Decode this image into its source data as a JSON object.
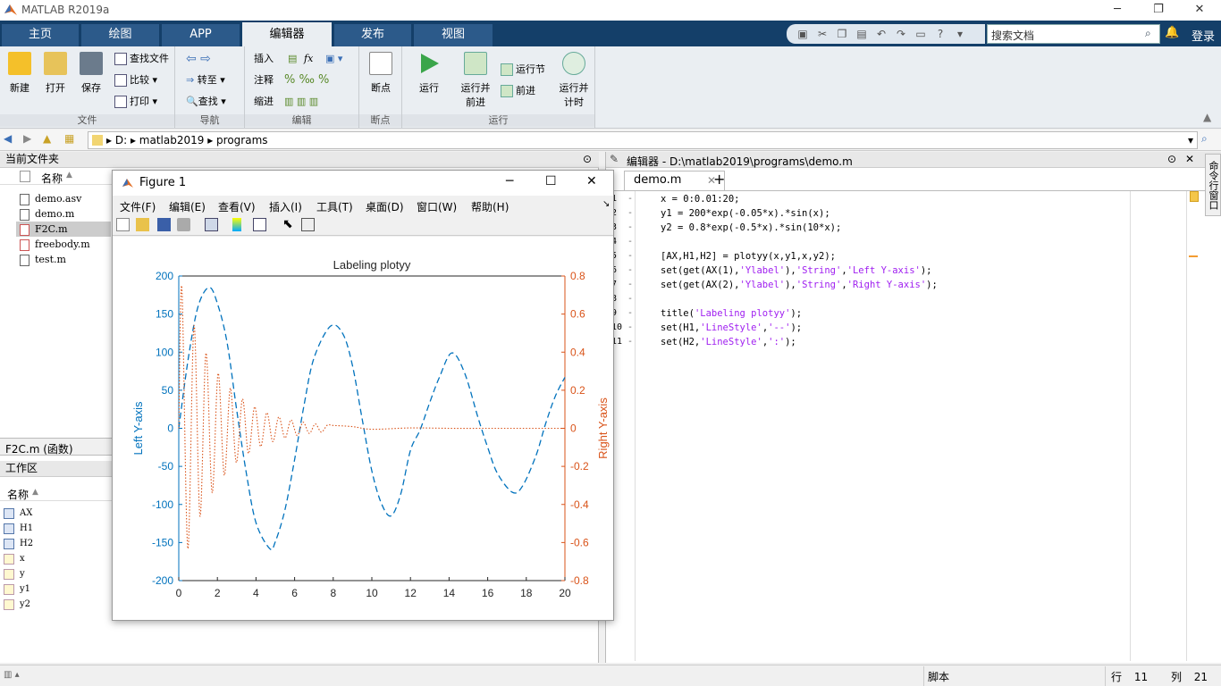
{
  "app": {
    "title": "MATLAB R2019a"
  },
  "ribbon_tabs": [
    {
      "label": "主页"
    },
    {
      "label": "绘图"
    },
    {
      "label": "APP"
    },
    {
      "label": "编辑器"
    },
    {
      "label": "发布"
    },
    {
      "label": "视图"
    }
  ],
  "search": {
    "placeholder": "搜索文档"
  },
  "login": "登录",
  "ribbon": {
    "file_group": {
      "label": "文件",
      "new": "新建",
      "open": "打开",
      "save": "保存",
      "find_files": "查找文件",
      "compare": "比较",
      "print": "打印"
    },
    "nav_group": {
      "label": "导航",
      "goto": "转至",
      "find": "查找"
    },
    "edit_group": {
      "label": "编辑",
      "insert": "插入",
      "comment": "注释",
      "indent": "缩进",
      "fx": "fx"
    },
    "bp_group": {
      "label": "断点",
      "breakpoints": "断点"
    },
    "run_group": {
      "label": "运行",
      "run": "运行",
      "run_advance_1": "运行并",
      "run_advance_2": "前进",
      "run_section": "运行节",
      "advance": "前进",
      "run_time_1": "运行并",
      "run_time_2": "计时"
    }
  },
  "address": {
    "drive": "D:",
    "folder1": "matlab2019",
    "folder2": "programs"
  },
  "current_folder": {
    "title": "当前文件夹",
    "name_header": "名称",
    "files": [
      "demo.asv",
      "demo.m",
      "F2C.m",
      "freebody.m",
      "test.m"
    ],
    "details": "F2C.m (函数)"
  },
  "workspace": {
    "title": "工作区",
    "name_header": "名称",
    "vars": [
      "AX",
      "H1",
      "H2",
      "x",
      "y",
      "y1",
      "y2"
    ]
  },
  "editor": {
    "title": "编辑器 - D:\\matlab2019\\programs\\demo.m",
    "tab": "demo.m",
    "side_label": "命令行窗口"
  },
  "code_lines": [
    {
      "n": "1",
      "segs": [
        {
          "t": "x = 0:0.01:20;",
          "s": false
        }
      ]
    },
    {
      "n": "2",
      "segs": [
        {
          "t": "y1 = 200*exp(-0.05*x).*sin(x);",
          "s": false
        }
      ]
    },
    {
      "n": "3",
      "segs": [
        {
          "t": "y2 = 0.8*exp(-0.5*x).*sin(10*x);",
          "s": false
        }
      ]
    },
    {
      "n": "4",
      "segs": []
    },
    {
      "n": "5",
      "segs": [
        {
          "t": "[AX,H1,H2] = plotyy(x,y1,x,y2);",
          "s": false
        }
      ]
    },
    {
      "n": "6",
      "segs": [
        {
          "t": "set(get(AX(1),",
          "s": false
        },
        {
          "t": "'Ylabel'",
          "s": true
        },
        {
          "t": "),",
          "s": false
        },
        {
          "t": "'String'",
          "s": true
        },
        {
          "t": ",",
          "s": false
        },
        {
          "t": "'Left Y-axis'",
          "s": true
        },
        {
          "t": ");",
          "s": false
        }
      ]
    },
    {
      "n": "7",
      "segs": [
        {
          "t": "set(get(AX(2),",
          "s": false
        },
        {
          "t": "'Ylabel'",
          "s": true
        },
        {
          "t": "),",
          "s": false
        },
        {
          "t": "'String'",
          "s": true
        },
        {
          "t": ",",
          "s": false
        },
        {
          "t": "'Right Y-axis'",
          "s": true
        },
        {
          "t": ");",
          "s": false
        }
      ]
    },
    {
      "n": "8",
      "segs": []
    },
    {
      "n": "9",
      "segs": [
        {
          "t": "title(",
          "s": false
        },
        {
          "t": "'Labeling plotyy'",
          "s": true
        },
        {
          "t": ");",
          "s": false
        }
      ]
    },
    {
      "n": "10",
      "segs": [
        {
          "t": "set(H1,",
          "s": false
        },
        {
          "t": "'LineStyle'",
          "s": true
        },
        {
          "t": ",",
          "s": false
        },
        {
          "t": "'--'",
          "s": true
        },
        {
          "t": ");",
          "s": false
        }
      ]
    },
    {
      "n": "11",
      "segs": [
        {
          "t": "set(H2,",
          "s": false
        },
        {
          "t": "'LineStyle'",
          "s": true
        },
        {
          "t": ",",
          "s": false
        },
        {
          "t": "':'",
          "s": true
        },
        {
          "t": ");",
          "s": false
        }
      ]
    }
  ],
  "figure": {
    "title": "Figure 1",
    "menus": [
      "文件(F)",
      "编辑(E)",
      "查看(V)",
      "插入(I)",
      "工具(T)",
      "桌面(D)",
      "窗口(W)",
      "帮助(H)"
    ]
  },
  "status": {
    "mode": "脚本",
    "row_label": "行",
    "row": "11",
    "col_label": "列",
    "col": "21"
  },
  "chart_data": {
    "type": "line",
    "title": "Labeling plotyy",
    "xlabel": "",
    "ylabel_left": "Left Y-axis",
    "ylabel_right": "Right Y-axis",
    "xlim": [
      0,
      20
    ],
    "ylim_left": [
      -200,
      200
    ],
    "ylim_right": [
      -0.8,
      0.8
    ],
    "xticks": [
      "0",
      "2",
      "4",
      "6",
      "8",
      "10",
      "12",
      "14",
      "16",
      "18",
      "20"
    ],
    "yticks_left": [
      "200",
      "150",
      "100",
      "50",
      "0",
      "-50",
      "-100",
      "-150",
      "-200"
    ],
    "yticks_right": [
      "0.8",
      "0.6",
      "0.4",
      "0.2",
      "0",
      "-0.2",
      "-0.4",
      "-0.6",
      "-0.8"
    ],
    "series": [
      {
        "axis": "left",
        "line_style": "--",
        "color": "#0072bd",
        "x": [
          0,
          0.5,
          1,
          1.57,
          2,
          2.5,
          3,
          3.5,
          4,
          4.71,
          5,
          5.5,
          6,
          6.5,
          7,
          7.85,
          8.5,
          9,
          9.5,
          10,
          10.5,
          11,
          11.5,
          12,
          12.5,
          13,
          13.5,
          14.14,
          14.8,
          15.5,
          16,
          16.5,
          17.28,
          17.8,
          18.5,
          19,
          19.5,
          20
        ],
        "y": [
          0,
          93,
          160,
          185,
          164,
          113,
          24,
          -59,
          -124,
          -158,
          -149,
          -107,
          -41,
          32,
          92,
          134,
          124,
          82,
          12,
          -56,
          -99,
          -115,
          -86,
          -29,
          -2,
          34,
          67,
          99,
          73,
          14,
          -25,
          -59,
          -84,
          -76,
          -36,
          6,
          42,
          67
        ]
      },
      {
        "axis": "right",
        "line_style": ":",
        "color": "#d95319",
        "x": [
          0,
          0.16,
          0.47,
          0.79,
          1.1,
          1.41,
          1.73,
          2.04,
          2.36,
          2.67,
          2.98,
          3.3,
          3.61,
          3.93,
          4.24,
          4.56,
          4.87,
          5.18,
          5.5,
          5.81,
          6.13,
          6.44,
          6.76,
          7.07,
          7.38,
          7.7,
          8,
          9,
          10,
          12,
          14,
          16,
          18,
          20
        ],
        "y": [
          0,
          0.739,
          -0.632,
          0.54,
          -0.462,
          0.395,
          -0.338,
          0.289,
          -0.247,
          0.211,
          -0.18,
          0.154,
          -0.132,
          0.113,
          -0.096,
          0.082,
          -0.07,
          0.06,
          -0.051,
          0.044,
          -0.038,
          0.032,
          -0.027,
          0.023,
          -0.02,
          0.017,
          0.015,
          0.009,
          -0.005,
          0.002,
          0,
          0,
          0,
          0
        ]
      }
    ]
  }
}
